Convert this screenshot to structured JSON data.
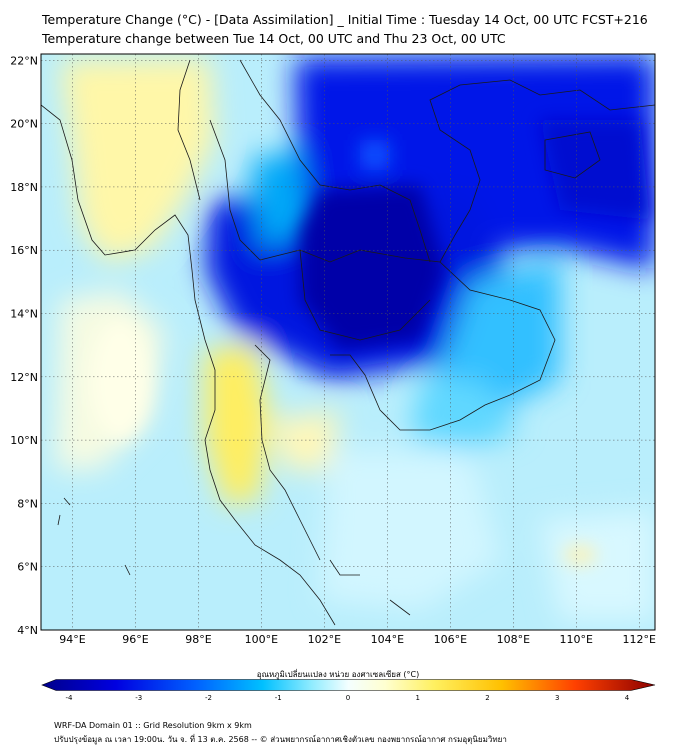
{
  "title_line1": "Temperature Change (°C) - [Data Assimilation] _ Initial Time : Tuesday 14 Oct, 00 UTC FCST+216",
  "title_line2": "Temperature change between Tue 14 Oct, 00 UTC and Thu 23 Oct, 00 UTC",
  "map": {
    "lon_range": [
      93,
      112.5
    ],
    "lat_range": [
      4,
      22.2
    ],
    "lon_ticks": [
      {
        "value": 94,
        "label": "94°E"
      },
      {
        "value": 96,
        "label": "96°E"
      },
      {
        "value": 98,
        "label": "98°E"
      },
      {
        "value": 100,
        "label": "100°E"
      },
      {
        "value": 102,
        "label": "102°E"
      },
      {
        "value": 104,
        "label": "104°E"
      },
      {
        "value": 106,
        "label": "106°E"
      },
      {
        "value": 108,
        "label": "108°E"
      },
      {
        "value": 110,
        "label": "110°E"
      },
      {
        "value": 112,
        "label": "112°E"
      }
    ],
    "lat_ticks": [
      {
        "value": 4,
        "label": "4°N"
      },
      {
        "value": 6,
        "label": "6°N"
      },
      {
        "value": 8,
        "label": "8°N"
      },
      {
        "value": 10,
        "label": "10°N"
      },
      {
        "value": 12,
        "label": "12°N"
      },
      {
        "value": 14,
        "label": "14°N"
      },
      {
        "value": 16,
        "label": "16°N"
      },
      {
        "value": 18,
        "label": "18°N"
      },
      {
        "value": 20,
        "label": "20°N"
      },
      {
        "value": 22,
        "label": "22°N"
      }
    ],
    "gridlines": true
  },
  "colorbar": {
    "label": "อุณหภูมิเปลี่ยนแปลง หน่วย องศาเซลเซียส (°C)",
    "min": -4,
    "max": 4,
    "ticks": [
      {
        "value": -4,
        "label": "-4"
      },
      {
        "value": -3,
        "label": "-3"
      },
      {
        "value": -2,
        "label": "-2"
      },
      {
        "value": -1,
        "label": "-1"
      },
      {
        "value": 0,
        "label": "0"
      },
      {
        "value": 1,
        "label": "1"
      },
      {
        "value": 2,
        "label": "2"
      },
      {
        "value": 3,
        "label": "3"
      },
      {
        "value": 4,
        "label": "4"
      }
    ],
    "colors": [
      "#00008b",
      "#0000e0",
      "#0050ff",
      "#00aaff",
      "#55ddff",
      "#b0f0ff",
      "#f0ffff",
      "#ffffe0",
      "#fff8a0",
      "#ffe040",
      "#ffb000",
      "#ff6000",
      "#e00000",
      "#8b0000"
    ]
  },
  "footer_line1": "WRF-DA Domain 01 :: Grid Resolution 9km x 9km",
  "footer_line2": "ปรับปรุงข้อมูล ณ เวลา 19:00น. วัน จ. ที่ 13 ต.ค. 2568 -- © ส่วนพยากรณ์อากาศเชิงตัวเลข กองพยากรณ์อากาศ กรมอุตุนิยมวิทยา"
}
